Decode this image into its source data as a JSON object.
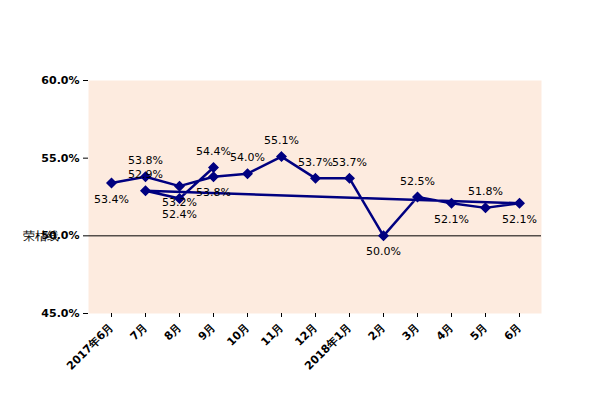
{
  "chart_data": {
    "type": "line",
    "categories": [
      "2017年6月",
      "7月",
      "8月",
      "9月",
      "10月",
      "11月",
      "12月",
      "2018年1月",
      "2月",
      "3月",
      "4月",
      "5月",
      "6月",
      "7月",
      "8月",
      "9月"
    ],
    "values": [
      53.4,
      53.8,
      53.2,
      53.8,
      54.0,
      55.1,
      53.7,
      53.7,
      50.0,
      52.5,
      52.1,
      51.8,
      52.1,
      52.9,
      52.4,
      54.4
    ],
    "value_labels": [
      "53.4%",
      "53.8%",
      "53.2%",
      "53.8%",
      "54.0%",
      "55.1%",
      "53.7%",
      "53.7%",
      "50.0%",
      "52.5%",
      "52.1%",
      "51.8%",
      "52.1%",
      "52.9%",
      "52.4%",
      "54.4%"
    ],
    "color": "#000080",
    "marker": "diamond",
    "data_labels": true,
    "ylim": [
      45,
      60
    ],
    "yticks": [
      {
        "value": 45,
        "label": "45.0%"
      },
      {
        "value": 50,
        "label": "50.0%"
      },
      {
        "value": 55,
        "label": "55.0%"
      },
      {
        "value": 60,
        "label": "60.0%"
      }
    ],
    "grid": false,
    "annotations": [
      {
        "text": "荣枯线",
        "y": 50
      }
    ]
  }
}
